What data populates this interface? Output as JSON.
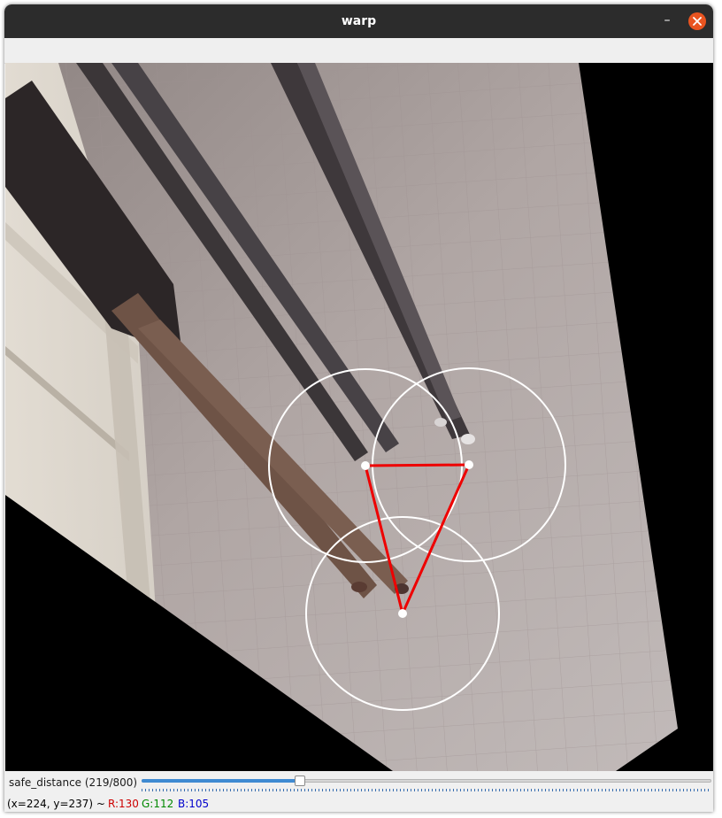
{
  "window": {
    "title": "warp"
  },
  "titlebar": {
    "minimize_glyph": "–",
    "close_icon": "close-icon"
  },
  "trackbar": {
    "name": "safe_distance",
    "label": "safe_distance (219/800)",
    "value": 219,
    "max": 800,
    "fill_color": "#3f8ad2"
  },
  "status": {
    "coords": "(x=224, y=237) ~",
    "r": "R:130",
    "g": "G:112",
    "b": "B:105",
    "r_color": "#cc0000",
    "g_color": "#008800",
    "b_color": "#0000cc"
  },
  "overlay": {
    "circle_color": "#ffffff",
    "line_color": "#ee0000",
    "point_color": "#ffffff"
  }
}
